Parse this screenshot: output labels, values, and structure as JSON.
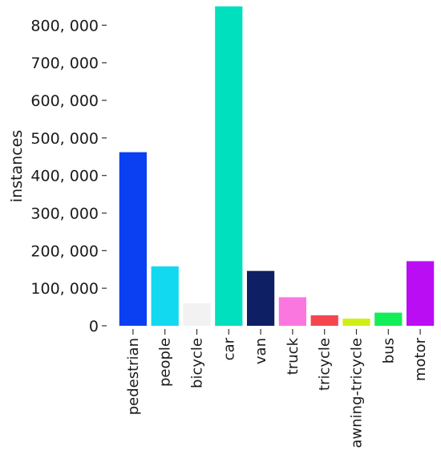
{
  "chart_data": {
    "type": "bar",
    "title": "",
    "xlabel": "",
    "ylabel": "instances",
    "ylim": [
      0,
      850000
    ],
    "yticks": [
      0,
      100000,
      200000,
      300000,
      400000,
      500000,
      600000,
      700000,
      800000
    ],
    "ytick_labels": [
      "0",
      "100, 000",
      "200, 000",
      "300, 000",
      "400, 000",
      "500, 000",
      "600, 000",
      "700, 000",
      "800, 000"
    ],
    "grid": false,
    "categories": [
      "pedestrian",
      "people",
      "bicycle",
      "car",
      "van",
      "truck",
      "tricycle",
      "awning-tricycle",
      "bus",
      "motor"
    ],
    "values": [
      462000,
      158000,
      60000,
      850000,
      146000,
      76000,
      28000,
      19000,
      35000,
      172000
    ],
    "colors": [
      "#0a3ff2",
      "#12d8f0",
      "#f2f2f2",
      "#00dfbe",
      "#0e1f63",
      "#fb77e0",
      "#f5464f",
      "#d1ee12",
      "#12ee57",
      "#bb0df4"
    ]
  }
}
